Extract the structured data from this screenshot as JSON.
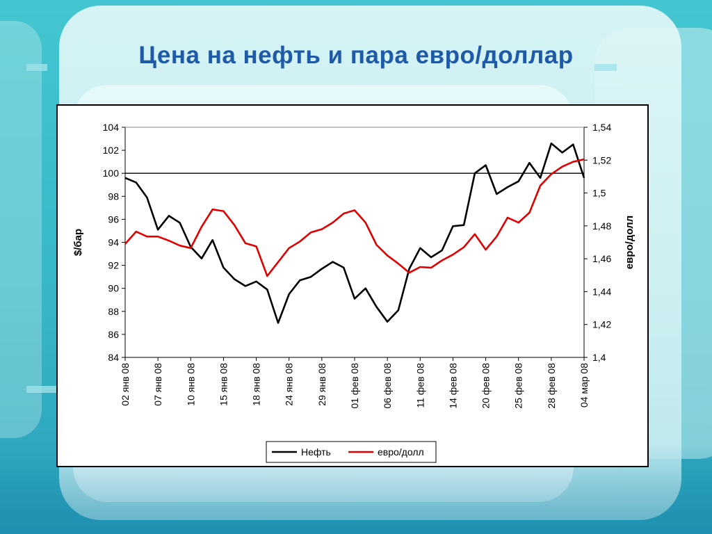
{
  "title": "Цена на нефть и пара евро/доллар",
  "colors": {
    "oil": "#000000",
    "eur_usd": "#e00000",
    "title": "#1f5aa8"
  },
  "chart_data": {
    "type": "line",
    "title": "Цена на нефть и пара евро/доллар",
    "ylabel": "$/бар",
    "y2label": "евро/долл",
    "ylim": [
      84,
      104
    ],
    "y2lim": [
      1.4,
      1.54
    ],
    "yticks": [
      "84",
      "86",
      "88",
      "90",
      "92",
      "94",
      "96",
      "98",
      "100",
      "102",
      "104"
    ],
    "y2ticks": [
      "1,4",
      "1,42",
      "1,44",
      "1,46",
      "1,48",
      "1,5",
      "1,52",
      "1,54"
    ],
    "reference_line": 100,
    "grid": false,
    "legend_position": "bottom",
    "x_labels": [
      "02 янв 08",
      "07 янв 08",
      "10 янв 08",
      "15 янв 08",
      "18 янв 08",
      "24 янв 08",
      "29 янв 08",
      "01 фев 08",
      "06 фев 08",
      "11 фев 08",
      "14 фев 08",
      "20 фев 08",
      "25 фев 08",
      "28 фев 08",
      "04 мар 08"
    ],
    "series": [
      {
        "name": "Нефть",
        "axis": "left",
        "values": [
          99.6,
          99.2,
          97.9,
          95.1,
          96.3,
          95.7,
          93.6,
          92.6,
          94.2,
          91.8,
          90.8,
          90.2,
          90.6,
          89.9,
          87.0,
          89.5,
          90.7,
          91.0,
          91.7,
          92.3,
          91.8,
          89.1,
          90.0,
          88.4,
          87.1,
          88.1,
          91.7,
          93.5,
          92.7,
          93.3,
          95.4,
          95.5,
          100.0,
          100.7,
          98.2,
          98.8,
          99.3,
          100.9,
          99.6,
          102.6,
          101.8,
          102.5,
          99.6
        ]
      },
      {
        "name": "евро/долл",
        "axis": "right",
        "values": [
          1.469,
          1.4765,
          1.4735,
          1.4735,
          1.471,
          1.468,
          1.4665,
          1.4795,
          1.49,
          1.489,
          1.4805,
          1.4695,
          1.4675,
          1.4495,
          1.458,
          1.4665,
          1.4705,
          1.476,
          1.478,
          1.482,
          1.4875,
          1.4895,
          1.482,
          1.4685,
          1.462,
          1.457,
          1.4515,
          1.455,
          1.4545,
          1.459,
          1.4625,
          1.467,
          1.475,
          1.4655,
          1.4735,
          1.485,
          1.482,
          1.488,
          1.5045,
          1.5115,
          1.516,
          1.519,
          1.5205
        ]
      }
    ]
  }
}
